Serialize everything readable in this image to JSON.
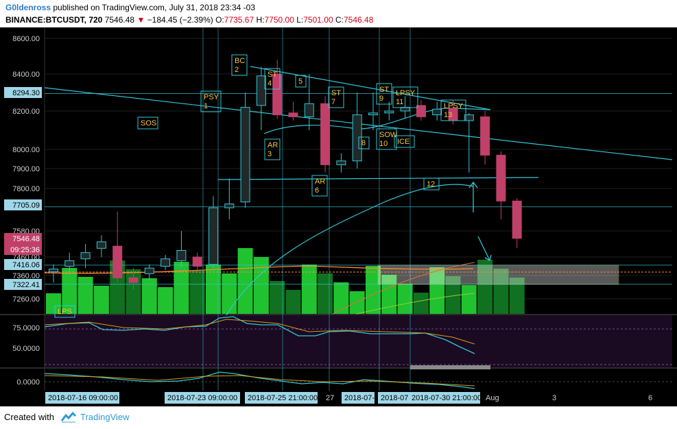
{
  "header": {
    "author": "G0ldenross",
    "published": " published on TradingView.com, July 31, 2018 23:34 -03",
    "symbol": "BINANCE:BTCUSDT, 720",
    "last": "7546.48",
    "change": "−184.45 (−2.39%)",
    "o_label": "O:",
    "o_val": "7735.67",
    "h_label": "H:",
    "h_val": "7750.00",
    "l_label": "L:",
    "l_val": "7501.00",
    "c_label": "C:",
    "c_val": "7546.48"
  },
  "footer": {
    "created": "Created with",
    "brand": "TradingView"
  },
  "colors": {
    "bg": "#000000",
    "up": "#26a69a",
    "down": "#c0406a",
    "cyan": "#35c6d8",
    "volume_up": "#22cc33",
    "volume_dn": "#117722",
    "orange": "#ff8a3d"
  },
  "price_axis": {
    "ticks": [
      "8600.00",
      "8400.00",
      "8200.00",
      "8000.00",
      "7900.00",
      "7800.00",
      "7580.00",
      "7460.00",
      "7360.00",
      "7260.00"
    ],
    "highlights": [
      {
        "label": "8294.30",
        "kind": "cyan"
      },
      {
        "label": "7705.09",
        "kind": "cyan"
      },
      {
        "label": "7546.48",
        "kind": "red"
      },
      {
        "label": "09:25:36",
        "kind": "red"
      },
      {
        "label": "7416.06",
        "kind": "cyan"
      },
      {
        "label": "7322.41",
        "kind": "cyan"
      }
    ]
  },
  "osc1": {
    "ticks": [
      "75.0000",
      "50.0000"
    ]
  },
  "osc2": {
    "ticks": [
      "0.0000"
    ]
  },
  "time_axis": {
    "labels": [
      {
        "label": "2018-07-16 09:00:00",
        "kind": "box"
      },
      {
        "label": "2018-07-23 09:00:00",
        "kind": "box"
      },
      {
        "label": "2018-07-25 21:00:00",
        "kind": "box"
      },
      {
        "label": "27",
        "kind": "plain"
      },
      {
        "label": "2018-07-",
        "kind": "box"
      },
      {
        "label": "2018-07-",
        "kind": "box"
      },
      {
        "label": "2018-07-30 21:00:00",
        "kind": "box"
      },
      {
        "label": "Aug",
        "kind": "plain"
      },
      {
        "label": "3",
        "kind": "plain"
      },
      {
        "label": "6",
        "kind": "plain"
      }
    ]
  },
  "annotations": [
    {
      "label": "SOS"
    },
    {
      "label": "PSY\n1"
    },
    {
      "label": "BC\n2"
    },
    {
      "label": "ST\n4"
    },
    {
      "label": "5"
    },
    {
      "label": "AR\n3"
    },
    {
      "label": "ST\n7"
    },
    {
      "label": "AR\n6"
    },
    {
      "label": "8"
    },
    {
      "label": "ST\n9"
    },
    {
      "label": "LPSY\n11"
    },
    {
      "label": "SOW\n10"
    },
    {
      "label": "ICE"
    },
    {
      "label": "LPSY\n13"
    },
    {
      "label": "12"
    },
    {
      "label": "LPS"
    }
  ],
  "chart_data": {
    "type": "candlestick",
    "symbol": "BINANCE:BTCUSDT",
    "interval": "720",
    "y_scale": "log-like",
    "ylim": [
      7200,
      8650
    ],
    "candles": [
      {
        "o": 7380,
        "h": 7420,
        "l": 7330,
        "c": 7395
      },
      {
        "o": 7410,
        "h": 7480,
        "l": 7370,
        "c": 7440
      },
      {
        "o": 7450,
        "h": 7520,
        "l": 7400,
        "c": 7480
      },
      {
        "o": 7500,
        "h": 7560,
        "l": 7460,
        "c": 7530
      },
      {
        "o": 7510,
        "h": 7680,
        "l": 7330,
        "c": 7350
      },
      {
        "o": 7350,
        "h": 7400,
        "l": 7300,
        "c": 7330
      },
      {
        "o": 7370,
        "h": 7420,
        "l": 7340,
        "c": 7400
      },
      {
        "o": 7410,
        "h": 7470,
        "l": 7390,
        "c": 7450
      },
      {
        "o": 7440,
        "h": 7580,
        "l": 7400,
        "c": 7490
      },
      {
        "o": 7460,
        "h": 7480,
        "l": 7380,
        "c": 7410
      },
      {
        "o": 7420,
        "h": 7760,
        "l": 7400,
        "c": 7700
      },
      {
        "o": 7700,
        "h": 7850,
        "l": 7640,
        "c": 7720
      },
      {
        "o": 7730,
        "h": 8300,
        "l": 7700,
        "c": 8220
      },
      {
        "o": 8230,
        "h": 8440,
        "l": 8100,
        "c": 8390
      },
      {
        "o": 8400,
        "h": 8480,
        "l": 8160,
        "c": 8180
      },
      {
        "o": 8190,
        "h": 8250,
        "l": 8150,
        "c": 8170
      },
      {
        "o": 8170,
        "h": 8400,
        "l": 8100,
        "c": 8240
      },
      {
        "o": 8240,
        "h": 8280,
        "l": 7880,
        "c": 7920
      },
      {
        "o": 7920,
        "h": 7980,
        "l": 7880,
        "c": 7940
      },
      {
        "o": 7940,
        "h": 8300,
        "l": 7900,
        "c": 8180
      },
      {
        "o": 8180,
        "h": 8300,
        "l": 8100,
        "c": 8190
      },
      {
        "o": 8190,
        "h": 8250,
        "l": 8150,
        "c": 8200
      },
      {
        "o": 8200,
        "h": 8280,
        "l": 8160,
        "c": 8220
      },
      {
        "o": 8230,
        "h": 8260,
        "l": 8150,
        "c": 8170
      },
      {
        "o": 8180,
        "h": 8250,
        "l": 8150,
        "c": 8210
      },
      {
        "o": 8215,
        "h": 8260,
        "l": 8130,
        "c": 8150
      },
      {
        "o": 8150,
        "h": 8190,
        "l": 7880,
        "c": 8180
      },
      {
        "o": 8170,
        "h": 8200,
        "l": 7920,
        "c": 7970
      },
      {
        "o": 7970,
        "h": 7990,
        "l": 7640,
        "c": 7735
      },
      {
        "o": 7735,
        "h": 7750,
        "l": 7501,
        "c": 7546
      }
    ]
  }
}
